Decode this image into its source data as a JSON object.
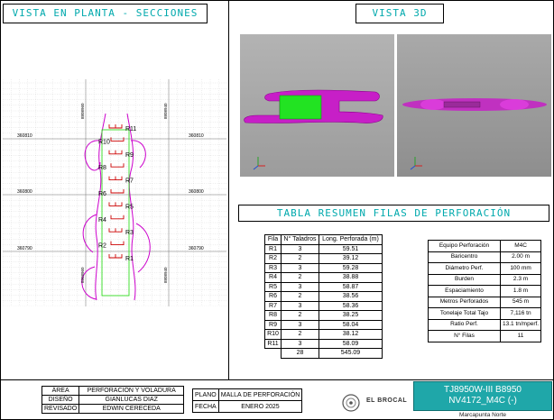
{
  "titles": {
    "plan": "VISTA EN PLANTA - SECCIONES",
    "view3d": "VISTA 3D",
    "table": "TABLA RESUMEN FILAS DE PERFORACIÓN"
  },
  "plan": {
    "east_labels": [
      "8808960",
      "8808940"
    ],
    "north_labels": [
      "360810",
      "360800",
      "360790"
    ],
    "row_labels": [
      "R11",
      "R10",
      "R9",
      "R8",
      "R7",
      "R6",
      "R5",
      "R4",
      "R3",
      "R2",
      "R1"
    ]
  },
  "rows_table": {
    "headers": [
      "Fila",
      "N° Taladros",
      "Long. Perforada (m)"
    ],
    "rows": [
      [
        "R1",
        "3",
        "59.51"
      ],
      [
        "R2",
        "2",
        "39.12"
      ],
      [
        "R3",
        "3",
        "59.28"
      ],
      [
        "R4",
        "2",
        "38.88"
      ],
      [
        "R5",
        "3",
        "58.87"
      ],
      [
        "R6",
        "2",
        "38.56"
      ],
      [
        "R7",
        "3",
        "58.36"
      ],
      [
        "R8",
        "2",
        "38.25"
      ],
      [
        "R9",
        "3",
        "58.04"
      ],
      [
        "R10",
        "2",
        "38.12"
      ],
      [
        "R11",
        "3",
        "58.09"
      ]
    ],
    "total_drills": "28",
    "total_length": "545.09"
  },
  "params_table": {
    "rows": [
      [
        "Equipo Perforación",
        "M4C"
      ],
      [
        "Baricentro",
        "2.00 m"
      ],
      [
        "Diámetro Perf.",
        "100 mm"
      ],
      [
        "Burden",
        "2.3 m"
      ],
      [
        "Espaciamiento",
        "1.8 m"
      ],
      [
        "Metros Perforados",
        "545 m"
      ],
      [
        "Tonelaje Total Tajo",
        "7,116 tn"
      ],
      [
        "Ratio Perf.",
        "13.1 tn/mperf."
      ],
      [
        "N° Filas",
        "11"
      ]
    ]
  },
  "title_block": {
    "left": [
      [
        "ÁREA",
        "PERFORACIÓN Y VOLADURA"
      ],
      [
        "DISEÑO",
        "GIANLUCAS DIAZ"
      ],
      [
        "REVISADO",
        "EDWIN CERECEDA"
      ]
    ],
    "mid": [
      [
        "PLANO",
        "MALLA DE PERFORACIÓN"
      ],
      [
        "FECHA",
        "ENERO 2025"
      ]
    ],
    "logo_text": "EL BROCAL",
    "code_line1": "TJ8950W-III B8950",
    "code_line2": "NV4172_M4C (-)",
    "zone": "Marcapunta Norte"
  },
  "colors": {
    "accent": "#00a9ad",
    "magenta": "#cc00cc",
    "green": "#33dd22",
    "red": "#cc0000"
  }
}
